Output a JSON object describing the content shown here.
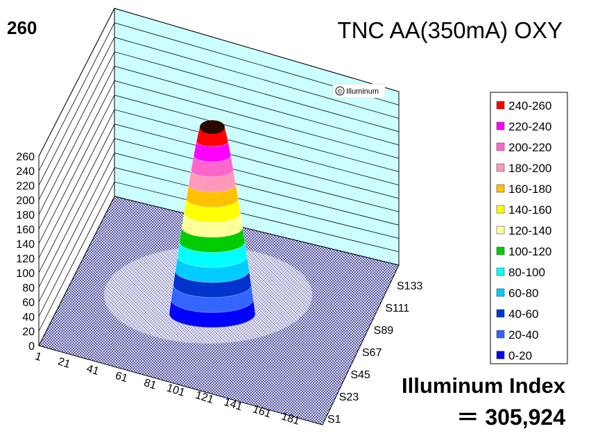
{
  "chart_data": {
    "type": "surface3d",
    "title": "TNC AA(350mA) OXY",
    "peak_label": "260",
    "watermark": "Illuminum",
    "watermark_symbol": "©",
    "z_axis": {
      "ticks": [
        "0",
        "20",
        "40",
        "60",
        "80",
        "100",
        "120",
        "140",
        "160",
        "180",
        "200",
        "220",
        "240",
        "260"
      ],
      "range": [
        0,
        260
      ]
    },
    "x_axis": {
      "ticks": [
        "1",
        "21",
        "41",
        "61",
        "81",
        "101",
        "121",
        "141",
        "161",
        "181"
      ]
    },
    "y_axis": {
      "ticks": [
        "S1",
        "S23",
        "S45",
        "S67",
        "S89",
        "S111",
        "S133"
      ]
    },
    "legend": {
      "placement": "right",
      "entries": [
        {
          "label": "240-260",
          "color": "#ff0000"
        },
        {
          "label": "220-240",
          "color": "#ff00ff"
        },
        {
          "label": "200-220",
          "color": "#ff66cc"
        },
        {
          "label": "180-200",
          "color": "#ff99bb"
        },
        {
          "label": "160-180",
          "color": "#ffc000"
        },
        {
          "label": "140-160",
          "color": "#ffff00"
        },
        {
          "label": "120-140",
          "color": "#ffff99"
        },
        {
          "label": "100-120",
          "color": "#00cc00"
        },
        {
          "label": "80-100",
          "color": "#00ffff"
        },
        {
          "label": "60-80",
          "color": "#00ccff"
        },
        {
          "label": "40-60",
          "color": "#0033cc"
        },
        {
          "label": "20-40",
          "color": "#3366ff"
        },
        {
          "label": "0-20",
          "color": "#0000ff"
        }
      ]
    },
    "index": {
      "title": "Illuminum Index",
      "value": "＝ 305,924"
    },
    "peak_value": 260
  },
  "colors": {
    "back_wall": "#ccffff",
    "floor_mesh": "#000080",
    "peak_cap": "#2a0a00"
  }
}
